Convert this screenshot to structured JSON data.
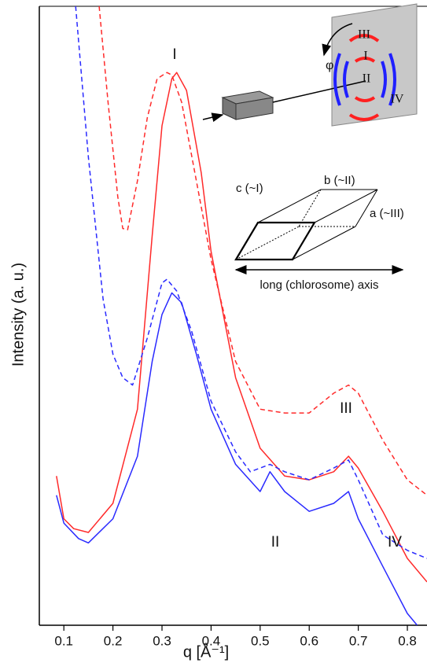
{
  "chart_data": {
    "type": "line",
    "xlabel": "q [Å⁻¹]",
    "ylabel": "Intensity (a. u.)",
    "xlim": [
      0.05,
      0.84
    ],
    "ylim": [
      0,
      100
    ],
    "xticks": [
      0.1,
      0.2,
      0.3,
      0.4,
      0.5,
      0.6,
      0.7,
      0.8
    ],
    "series": [
      {
        "color": "#ff2a2a",
        "dash": false,
        "x": [
          0.085,
          0.1,
          0.12,
          0.15,
          0.2,
          0.25,
          0.28,
          0.3,
          0.32,
          0.33,
          0.35,
          0.38,
          0.4,
          0.45,
          0.5,
          0.55,
          0.6,
          0.65,
          0.68,
          0.7,
          0.75,
          0.8,
          0.84
        ],
        "values": [
          24.1,
          17.2,
          15.6,
          15.0,
          19.7,
          34.9,
          62.9,
          80.7,
          88.3,
          89.3,
          86.4,
          73.1,
          60.4,
          40.0,
          28.6,
          24.1,
          23.5,
          24.8,
          27.3,
          25.4,
          18.4,
          10.8,
          7.0
        ]
      },
      {
        "color": "#ff2a2a",
        "dash": true,
        "x": [
          0.172,
          0.19,
          0.21,
          0.22,
          0.23,
          0.25,
          0.27,
          0.29,
          0.31,
          0.32,
          0.34,
          0.37,
          0.4,
          0.45,
          0.5,
          0.55,
          0.6,
          0.65,
          0.68,
          0.7,
          0.75,
          0.8,
          0.84
        ],
        "values": [
          100,
          84.5,
          69.2,
          64.1,
          63.9,
          71.8,
          82.0,
          88.3,
          89.3,
          88.9,
          84.5,
          71.8,
          59.1,
          42.6,
          34.9,
          34.3,
          34.3,
          37.5,
          38.8,
          37.5,
          29.9,
          23.5,
          21.0
        ]
      },
      {
        "color": "#2a2aff",
        "dash": false,
        "x": [
          0.085,
          0.1,
          0.13,
          0.15,
          0.2,
          0.25,
          0.28,
          0.3,
          0.32,
          0.34,
          0.37,
          0.4,
          0.45,
          0.5,
          0.52,
          0.55,
          0.6,
          0.65,
          0.68,
          0.7,
          0.75,
          0.8,
          0.82
        ],
        "values": [
          21.0,
          16.5,
          14.0,
          13.3,
          17.2,
          27.3,
          42.6,
          50.2,
          53.7,
          52.1,
          43.8,
          34.9,
          26.0,
          21.6,
          24.8,
          21.6,
          18.4,
          19.7,
          21.6,
          17.2,
          9.5,
          1.9,
          0
        ]
      },
      {
        "color": "#2a2aff",
        "dash": true,
        "x": [
          0.124,
          0.15,
          0.18,
          0.2,
          0.22,
          0.24,
          0.27,
          0.3,
          0.31,
          0.33,
          0.36,
          0.4,
          0.45,
          0.48,
          0.52,
          0.55,
          0.6,
          0.65,
          0.68,
          0.7,
          0.75,
          0.8,
          0.84
        ],
        "values": [
          100,
          75.6,
          52.7,
          43.8,
          40.0,
          38.8,
          46.4,
          55.3,
          55.9,
          54.0,
          47.6,
          36.2,
          28.0,
          24.8,
          26.0,
          24.8,
          23.5,
          25.4,
          26.7,
          23.5,
          14.6,
          12.1,
          10.8
        ]
      }
    ],
    "annotations": [
      "I",
      "II",
      "III",
      "IV"
    ],
    "inset": {
      "phi": "φ",
      "detector_labels": [
        "III",
        "I",
        "II",
        "IV"
      ],
      "crystal_labels": [
        "c (~I)",
        "b (~II)",
        "a (~III)"
      ],
      "axis_label": "long (chlorosome) axis"
    }
  }
}
